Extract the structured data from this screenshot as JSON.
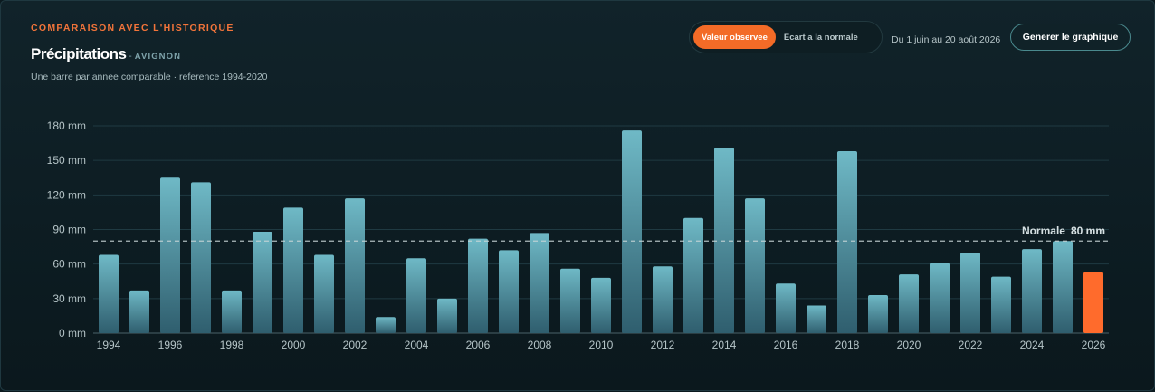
{
  "header": {
    "eyebrow": "COMPARAISON AVEC L'HISTORIQUE",
    "title": "Précipitations",
    "separator": "-",
    "location": "AVIGNON",
    "subtitle": "Une barre par annee comparable · reference 1994-2020"
  },
  "controls": {
    "toggle_observed": "Valeur observee",
    "toggle_deviation": "Ecart a la normale",
    "active_toggle": "observed",
    "date_range": "Du 1 juin au 20 août 2026",
    "generate_label": "Generer le graphique"
  },
  "colors": {
    "bar_top": "#6fb9c6",
    "bar_bottom": "#2f5e6e",
    "highlight": "#ff6b2c",
    "grid": "#1f3a42",
    "normal_line": "#c9d6d8",
    "axis_text": "#b5c4c7"
  },
  "chart_data": {
    "type": "bar",
    "title": "Précipitations",
    "unit": "mm",
    "categories": [
      "1994",
      "1995",
      "1996",
      "1997",
      "1998",
      "1999",
      "2000",
      "2001",
      "2002",
      "2003",
      "2004",
      "2005",
      "2006",
      "2007",
      "2008",
      "2009",
      "2010",
      "2011",
      "2012",
      "2013",
      "2014",
      "2015",
      "2016",
      "2017",
      "2018",
      "2019",
      "2020",
      "2021",
      "2022",
      "2023",
      "2024",
      "2025",
      "2026"
    ],
    "values": [
      68,
      37,
      135,
      131,
      37,
      88,
      109,
      68,
      117,
      14,
      65,
      30,
      82,
      72,
      87,
      56,
      48,
      176,
      58,
      100,
      161,
      117,
      43,
      24,
      158,
      33,
      51,
      61,
      70,
      49,
      73,
      80,
      53
    ],
    "highlight_category": "2026",
    "x_tick_labels": [
      "1994",
      "1996",
      "1998",
      "2000",
      "2002",
      "2004",
      "2006",
      "2008",
      "2010",
      "2012",
      "2014",
      "2016",
      "2018",
      "2020",
      "2022",
      "2024",
      "2026"
    ],
    "y_ticks": [
      0,
      30,
      60,
      90,
      120,
      150,
      180
    ],
    "y_tick_labels": [
      "0 mm",
      "30 mm",
      "60 mm",
      "90 mm",
      "120 mm",
      "150 mm",
      "180 mm"
    ],
    "ylim": [
      0,
      180
    ],
    "grid": true,
    "reference_line": {
      "label": "Normale",
      "value": 80,
      "value_label": "80 mm"
    }
  }
}
